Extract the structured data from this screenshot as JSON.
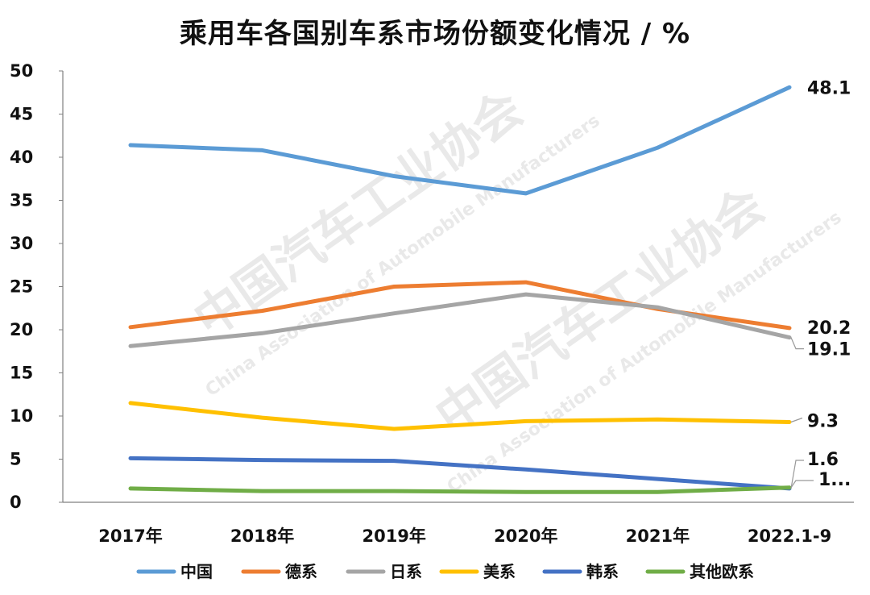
{
  "chart_data": {
    "type": "line",
    "title": "乘用车各国别车系市场份额变化情况 / %",
    "categories": [
      "2017年",
      "2018年",
      "2019年",
      "2020年",
      "2021年",
      "2022.1-9"
    ],
    "ylim": [
      0,
      50
    ],
    "yticks": [
      "0",
      "5",
      "10",
      "15",
      "20",
      "25",
      "30",
      "35",
      "40",
      "45",
      "50"
    ],
    "grid": false,
    "legend_position": "bottom",
    "series": [
      {
        "name": "中国",
        "color": "#5B9BD5",
        "values": [
          41.4,
          40.8,
          37.8,
          35.8,
          41.1,
          48.1
        ],
        "end_label": "48.1"
      },
      {
        "name": "德系",
        "color": "#ED7D31",
        "values": [
          20.3,
          22.2,
          25.0,
          25.5,
          22.4,
          20.2
        ],
        "end_label": "20.2"
      },
      {
        "name": "日系",
        "color": "#A5A5A5",
        "values": [
          18.1,
          19.6,
          21.9,
          24.1,
          22.6,
          19.1
        ],
        "end_label": "19.1"
      },
      {
        "name": "美系",
        "color": "#FFC000",
        "values": [
          11.5,
          9.8,
          8.5,
          9.4,
          9.6,
          9.3
        ],
        "end_label": "9.3"
      },
      {
        "name": "韩系",
        "color": "#4472C4",
        "values": [
          5.1,
          4.9,
          4.8,
          3.8,
          2.7,
          1.6
        ],
        "end_label": "1.6"
      },
      {
        "name": "其他欧系",
        "color": "#70AD47",
        "values": [
          1.6,
          1.3,
          1.3,
          1.2,
          1.2,
          1.7
        ],
        "end_label": "1..."
      }
    ]
  },
  "watermark": {
    "org_cn": "中国汽车工业协会",
    "org_en": "China Association of Automobile Manufacturers"
  }
}
